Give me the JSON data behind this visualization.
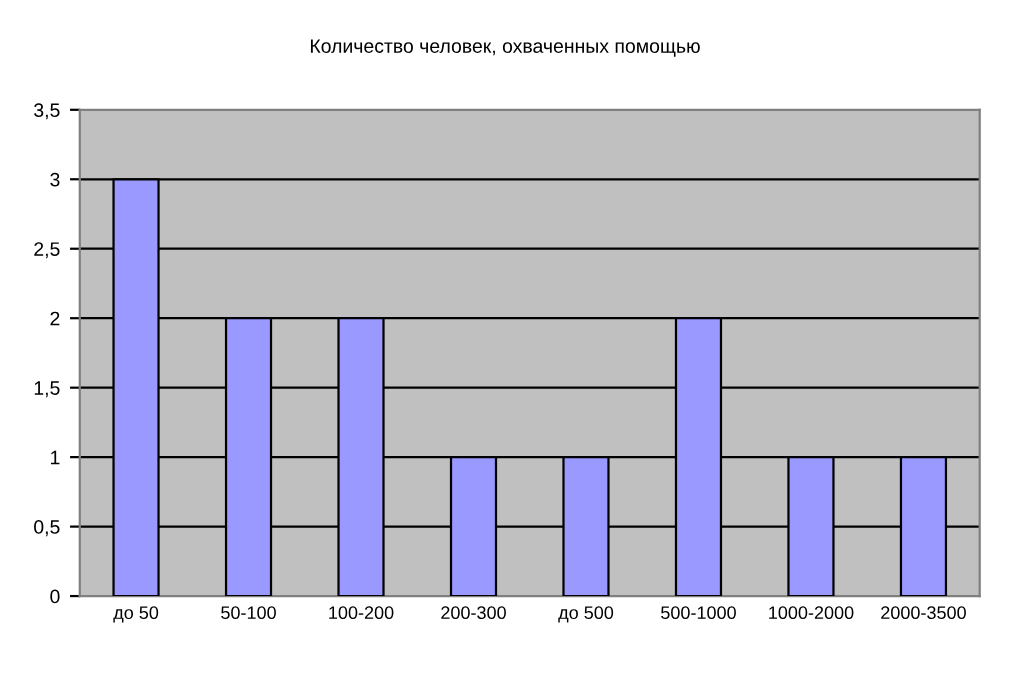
{
  "chart_data": {
    "type": "bar",
    "title": "Количество человек, охваченных помощью",
    "categories": [
      "до 50",
      "50-100",
      "100-200",
      "200-300",
      "до 500",
      "500-1000",
      "1000-2000",
      "2000-3500"
    ],
    "values": [
      3,
      2,
      2,
      1,
      1,
      2,
      1,
      1
    ],
    "color": "#9999ff",
    "ylim": [
      0,
      3.5
    ],
    "yticks": [
      0,
      {
        "value": 0.5,
        "label": "0,5"
      },
      1,
      {
        "value": 1.5,
        "label": "1,5"
      },
      2,
      {
        "value": 2.5,
        "label": "2,5"
      },
      3,
      {
        "value": 3.5,
        "label": "3,5"
      }
    ],
    "grid": "y",
    "legend": false
  }
}
